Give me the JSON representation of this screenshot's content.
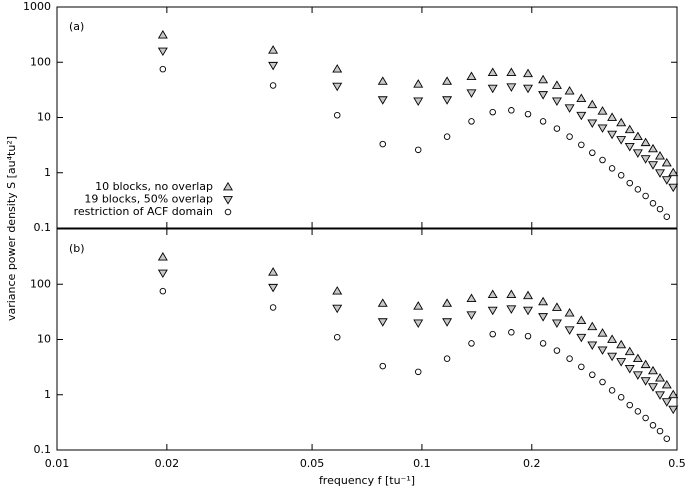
{
  "chart_data": [
    {
      "type": "scatter",
      "panel_label": "(a)",
      "y_label": "variance power density S [au⁴tu²]",
      "log_x": true,
      "log_y": true,
      "xlim": [
        0.01,
        0.5
      ],
      "ylim": [
        0.1,
        1000
      ],
      "yticks": [
        0.1,
        1,
        10,
        100,
        1000
      ],
      "legend": "lower left",
      "x": [
        0.0195,
        0.0391,
        0.0586,
        0.0781,
        0.0977,
        0.1172,
        0.1367,
        0.1563,
        0.1758,
        0.1953,
        0.2148,
        0.2344,
        0.2539,
        0.2734,
        0.293,
        0.3125,
        0.332,
        0.3516,
        0.3711,
        0.3906,
        0.4102,
        0.4297,
        0.4492,
        0.4688,
        0.4883
      ],
      "series": [
        {
          "name": "10 blocks, no overlap",
          "marker": "triangle-up",
          "color": "#000000",
          "fill": "#c8c8c8",
          "values": [
            310,
            165,
            75,
            45,
            40,
            45,
            55,
            65,
            65,
            62,
            48,
            38,
            30,
            22,
            17,
            13,
            10,
            8,
            6,
            4.5,
            3.5,
            2.7,
            2.0,
            1.5,
            1.0
          ]
        },
        {
          "name": "19 blocks, 50% overlap",
          "marker": "triangle-down",
          "color": "#000000",
          "fill": "#c8c8c8",
          "values": [
            160,
            88,
            37,
            21,
            20,
            21,
            28,
            34,
            36,
            34,
            26,
            20,
            15,
            11,
            8,
            6.5,
            5,
            4,
            3,
            2.3,
            1.8,
            1.4,
            1.0,
            0.75,
            0.55
          ]
        },
        {
          "name": "restriction of ACF domain",
          "marker": "circle",
          "color": "#000000",
          "fill": "none",
          "values": [
            75,
            38,
            11,
            3.3,
            2.6,
            4.5,
            8.5,
            12.5,
            13.5,
            11.5,
            8.5,
            6.3,
            4.5,
            3.2,
            2.3,
            1.7,
            1.2,
            0.9,
            0.65,
            0.5,
            0.38,
            0.28,
            0.22,
            0.16,
            null
          ]
        }
      ]
    },
    {
      "type": "scatter",
      "panel_label": "(b)",
      "x_label": "frequency f [tu⁻¹]",
      "log_x": true,
      "log_y": true,
      "xlim": [
        0.01,
        0.5
      ],
      "ylim": [
        0.1,
        1000
      ],
      "yticks": [
        0.1,
        1,
        10,
        100
      ],
      "xticks": [
        0.01,
        0.02,
        0.05,
        0.1,
        0.2,
        0.5
      ],
      "x": [
        0.0195,
        0.0391,
        0.0586,
        0.0781,
        0.0977,
        0.1172,
        0.1367,
        0.1563,
        0.1758,
        0.1953,
        0.2148,
        0.2344,
        0.2539,
        0.2734,
        0.293,
        0.3125,
        0.332,
        0.3516,
        0.3711,
        0.3906,
        0.4102,
        0.4297,
        0.4492,
        0.4688,
        0.4883
      ],
      "series": [
        {
          "marker": "triangle-up",
          "color": "#000000",
          "fill": "#c8c8c8",
          "values": [
            310,
            165,
            75,
            45,
            40,
            45,
            55,
            65,
            65,
            62,
            48,
            38,
            30,
            22,
            17,
            13,
            10,
            8,
            6,
            4.5,
            3.5,
            2.7,
            2.0,
            1.5,
            1.0
          ]
        },
        {
          "marker": "triangle-down",
          "color": "#000000",
          "fill": "#c8c8c8",
          "values": [
            160,
            88,
            37,
            21,
            20,
            21,
            28,
            34,
            36,
            34,
            26,
            20,
            15,
            11,
            8,
            6.5,
            5,
            4,
            3,
            2.3,
            1.8,
            1.4,
            1.0,
            0.75,
            0.55
          ]
        },
        {
          "marker": "circle",
          "color": "#000000",
          "fill": "none",
          "values": [
            75,
            38,
            11,
            3.3,
            2.6,
            4.5,
            8.5,
            12.5,
            13.5,
            11.5,
            8.5,
            6.3,
            4.5,
            3.2,
            2.3,
            1.7,
            1.2,
            0.9,
            0.65,
            0.5,
            0.38,
            0.28,
            0.22,
            0.16,
            null
          ]
        }
      ]
    }
  ]
}
